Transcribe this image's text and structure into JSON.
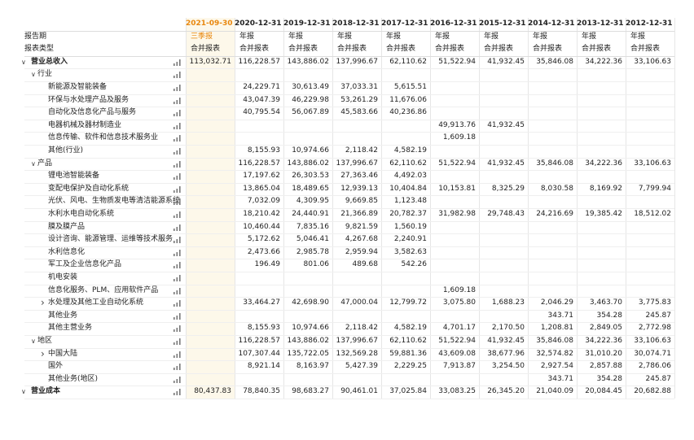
{
  "header": {
    "dates": [
      "2021-09-30",
      "2020-12-31",
      "2019-12-31",
      "2018-12-31",
      "2017-12-31",
      "2016-12-31",
      "2015-12-31",
      "2014-12-31",
      "2013-12-31",
      "2012-12-31"
    ],
    "period_label": "报告期",
    "periods": [
      "三季报",
      "年报",
      "年报",
      "年报",
      "年报",
      "年报",
      "年报",
      "年报",
      "年报",
      "年报"
    ],
    "type_label": "报表类型",
    "types": [
      "合并报表",
      "合并报表",
      "合并报表",
      "合并报表",
      "合并报表",
      "合并报表",
      "合并报表",
      "合并报表",
      "合并报表",
      "合并报表"
    ]
  },
  "rows": [
    {
      "label": "营业总收入",
      "level": 0,
      "toggle": "open",
      "bold": true,
      "values": [
        "113,032.71",
        "116,228.57",
        "143,886.02",
        "137,996.67",
        "62,110.62",
        "51,522.94",
        "41,932.45",
        "35,846.08",
        "34,222.36",
        "33,106.63"
      ]
    },
    {
      "label": "行业",
      "level": 1,
      "toggle": "open",
      "values": [
        null,
        null,
        null,
        null,
        null,
        null,
        null,
        null,
        null,
        null
      ]
    },
    {
      "label": "新能源及智能装备",
      "level": 2,
      "values": [
        null,
        "24,229.71",
        "30,613.49",
        "37,033.31",
        "5,615.51",
        null,
        null,
        null,
        null,
        null
      ]
    },
    {
      "label": "环保与水处理产品及服务",
      "level": 2,
      "values": [
        null,
        "43,047.39",
        "46,229.98",
        "53,261.29",
        "11,676.06",
        null,
        null,
        null,
        null,
        null
      ]
    },
    {
      "label": "自动化及信息化产品与服务",
      "level": 2,
      "values": [
        null,
        "40,795.54",
        "56,067.89",
        "45,583.66",
        "40,236.86",
        null,
        null,
        null,
        null,
        null
      ]
    },
    {
      "label": "电器机械及器材制造业",
      "level": 2,
      "values": [
        null,
        null,
        null,
        null,
        null,
        "49,913.76",
        "41,932.45",
        null,
        null,
        null
      ]
    },
    {
      "label": "信息传输、软件和信息技术服务业",
      "level": 2,
      "values": [
        null,
        null,
        null,
        null,
        null,
        "1,609.18",
        null,
        null,
        null,
        null
      ]
    },
    {
      "label": "其他(行业)",
      "level": 2,
      "values": [
        null,
        "8,155.93",
        "10,974.66",
        "2,118.42",
        "4,582.19",
        null,
        null,
        null,
        null,
        null
      ]
    },
    {
      "label": "产品",
      "level": 1,
      "toggle": "open",
      "values": [
        null,
        "116,228.57",
        "143,886.02",
        "137,996.67",
        "62,110.62",
        "51,522.94",
        "41,932.45",
        "35,846.08",
        "34,222.36",
        "33,106.63"
      ]
    },
    {
      "label": "锂电池智能装备",
      "level": 2,
      "values": [
        null,
        "17,197.62",
        "26,303.53",
        "27,363.46",
        "4,492.03",
        null,
        null,
        null,
        null,
        null
      ]
    },
    {
      "label": "变配电保护及自动化系统",
      "level": 2,
      "values": [
        null,
        "13,865.04",
        "18,489.65",
        "12,939.13",
        "10,404.84",
        "10,153.81",
        "8,325.29",
        "8,030.58",
        "8,169.92",
        "7,799.94"
      ]
    },
    {
      "label": "光伏、风电、生物质发电等清洁能源系统",
      "level": 2,
      "values": [
        null,
        "7,032.09",
        "4,309.95",
        "9,669.85",
        "1,123.48",
        null,
        null,
        null,
        null,
        null
      ]
    },
    {
      "label": "水利水电自动化系统",
      "level": 2,
      "values": [
        null,
        "18,210.42",
        "24,440.91",
        "21,366.89",
        "20,782.37",
        "31,982.98",
        "29,748.43",
        "24,216.69",
        "19,385.42",
        "18,512.02"
      ]
    },
    {
      "label": "膜及膜产品",
      "level": 2,
      "values": [
        null,
        "10,460.44",
        "7,835.16",
        "9,821.59",
        "1,560.19",
        null,
        null,
        null,
        null,
        null
      ]
    },
    {
      "label": "设计咨询、能源管理、运维等技术服务",
      "level": 2,
      "values": [
        null,
        "5,172.62",
        "5,046.41",
        "4,267.68",
        "2,240.91",
        null,
        null,
        null,
        null,
        null
      ]
    },
    {
      "label": "水利信息化",
      "level": 2,
      "values": [
        null,
        "2,473.66",
        "2,985.78",
        "2,959.94",
        "3,582.63",
        null,
        null,
        null,
        null,
        null
      ]
    },
    {
      "label": "军工及企业信息化产品",
      "level": 2,
      "values": [
        null,
        "196.49",
        "801.06",
        "489.68",
        "542.26",
        null,
        null,
        null,
        null,
        null
      ]
    },
    {
      "label": "机电安装",
      "level": 2,
      "values": [
        null,
        null,
        null,
        null,
        null,
        null,
        null,
        null,
        null,
        null
      ]
    },
    {
      "label": "信息化服务、PLM、应用软件产品",
      "level": 2,
      "values": [
        null,
        null,
        null,
        null,
        null,
        "1,609.18",
        null,
        null,
        null,
        null
      ]
    },
    {
      "label": "水处理及其他工业自动化系统",
      "level": 2,
      "toggle": "closed",
      "values": [
        null,
        "33,464.27",
        "42,698.90",
        "47,000.04",
        "12,799.72",
        "3,075.80",
        "1,688.23",
        "2,046.29",
        "3,463.70",
        "3,775.83"
      ]
    },
    {
      "label": "其他业务",
      "level": 2,
      "values": [
        null,
        null,
        null,
        null,
        null,
        null,
        null,
        "343.71",
        "354.28",
        "245.87"
      ]
    },
    {
      "label": "其他主营业务",
      "level": 2,
      "values": [
        null,
        "8,155.93",
        "10,974.66",
        "2,118.42",
        "4,582.19",
        "4,701.17",
        "2,170.50",
        "1,208.81",
        "2,849.05",
        "2,772.98"
      ]
    },
    {
      "label": "地区",
      "level": 1,
      "toggle": "open",
      "values": [
        null,
        "116,228.57",
        "143,886.02",
        "137,996.67",
        "62,110.62",
        "51,522.94",
        "41,932.45",
        "35,846.08",
        "34,222.36",
        "33,106.63"
      ]
    },
    {
      "label": "中国大陆",
      "level": 2,
      "toggle": "closed",
      "values": [
        null,
        "107,307.44",
        "135,722.05",
        "132,569.28",
        "59,881.36",
        "43,609.08",
        "38,677.96",
        "32,574.82",
        "31,010.20",
        "30,074.71"
      ]
    },
    {
      "label": "国外",
      "level": 2,
      "values": [
        null,
        "8,921.14",
        "8,163.97",
        "5,427.39",
        "2,229.25",
        "7,913.87",
        "3,254.50",
        "2,927.54",
        "2,857.88",
        "2,786.06"
      ]
    },
    {
      "label": "其他业务(地区)",
      "level": 2,
      "values": [
        null,
        null,
        null,
        null,
        null,
        null,
        null,
        "343.71",
        "354.28",
        "245.87"
      ]
    },
    {
      "label": "营业成本",
      "level": 0,
      "toggle": "open",
      "bold": true,
      "values": [
        "80,437.83",
        "78,840.35",
        "98,683.27",
        "90,461.01",
        "37,025.84",
        "33,083.25",
        "26,345.20",
        "21,040.09",
        "20,084.45",
        "20,682.88"
      ]
    }
  ]
}
